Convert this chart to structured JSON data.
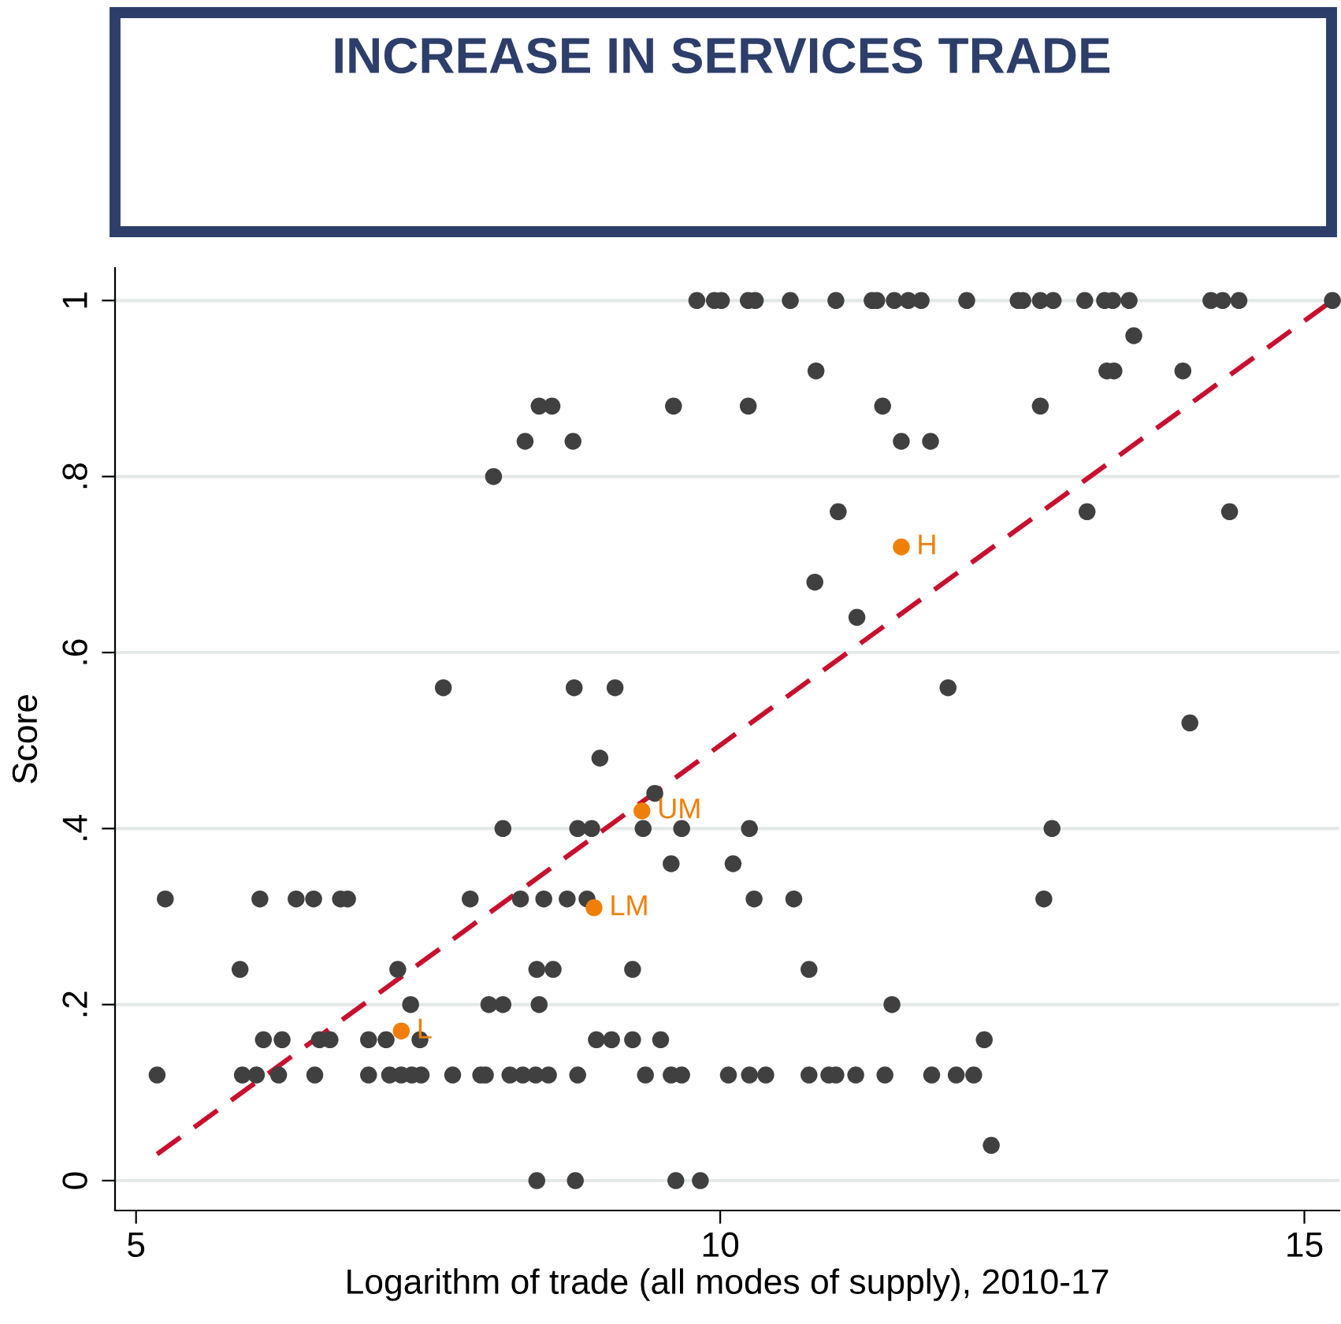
{
  "chart_data": {
    "type": "scatter",
    "title": "INCREASE IN SERVICES TRADE",
    "xlabel": "Logarithm of trade (all modes of supply), 2010-17",
    "ylabel": "Score",
    "xlim": [
      4.82,
      15.3
    ],
    "ylim": [
      -0.034,
      1.037
    ],
    "xticks": [
      5,
      10,
      15
    ],
    "yticks": [
      0,
      {
        "value": 0.2,
        "label": ".2"
      },
      {
        "value": 0.4,
        "label": ".4"
      },
      {
        "value": 0.6,
        "label": ".6"
      },
      {
        "value": 0.8,
        "label": ".8"
      },
      1
    ],
    "grid": "y",
    "marker": "circle",
    "legend": false,
    "series": [
      {
        "color": "#404040",
        "x": [
          9.8,
          9.95,
          10.01,
          10.24,
          10.3,
          10.6,
          10.99,
          11.3,
          11.34,
          11.49,
          11.61,
          11.72,
          12.11,
          12.55,
          12.59,
          12.74,
          12.85,
          13.12,
          13.29,
          13.36,
          13.5,
          14.2,
          14.3,
          14.44,
          15.24,
          13.54,
          10.82,
          13.31,
          13.37,
          13.96,
          8.45,
          8.56,
          9.6,
          10.24,
          11.39,
          12.74,
          8.33,
          8.74,
          11.55,
          11.8,
          8.06,
          11.01,
          13.14,
          14.36,
          10.81,
          11.17,
          7.63,
          8.75,
          9.1,
          11.95,
          14.02,
          8.97,
          9.44,
          8.14,
          8.78,
          8.9,
          9.34,
          9.67,
          10.25,
          12.84,
          9.58,
          10.11,
          5.25,
          6.06,
          6.37,
          6.52,
          6.75,
          6.81,
          7.86,
          8.29,
          8.49,
          8.69,
          8.86,
          10.29,
          10.63,
          12.77,
          5.89,
          7.24,
          8.43,
          8.57,
          9.25,
          10.76,
          7.35,
          8.02,
          8.14,
          8.45,
          11.47,
          6.09,
          6.25,
          6.57,
          6.66,
          6.99,
          7.14,
          7.43,
          8.94,
          9.07,
          9.25,
          9.49,
          12.26,
          5.18,
          5.91,
          6.03,
          6.22,
          6.53,
          6.99,
          7.17,
          7.27,
          7.36,
          7.44,
          7.71,
          7.95,
          7.99,
          8.2,
          8.31,
          8.42,
          8.53,
          8.78,
          9.36,
          9.58,
          9.67,
          10.07,
          10.25,
          10.39,
          10.76,
          10.93,
          10.99,
          11.16,
          11.41,
          11.81,
          12.02,
          12.17,
          12.32,
          8.43,
          8.76,
          9.62,
          9.83
        ],
        "values": [
          1,
          1,
          1,
          1,
          1,
          1,
          1,
          1,
          1,
          1,
          1,
          1,
          1,
          1,
          1,
          1,
          1,
          1,
          1,
          1,
          1,
          1,
          1,
          1,
          1,
          0.96,
          0.92,
          0.92,
          0.92,
          0.92,
          0.88,
          0.88,
          0.88,
          0.88,
          0.88,
          0.88,
          0.84,
          0.84,
          0.84,
          0.84,
          0.8,
          0.76,
          0.76,
          0.76,
          0.68,
          0.64,
          0.56,
          0.56,
          0.56,
          0.56,
          0.52,
          0.48,
          0.44,
          0.4,
          0.4,
          0.4,
          0.4,
          0.4,
          0.4,
          0.4,
          0.36,
          0.36,
          0.32,
          0.32,
          0.32,
          0.32,
          0.32,
          0.32,
          0.32,
          0.32,
          0.32,
          0.32,
          0.32,
          0.32,
          0.32,
          0.32,
          0.24,
          0.24,
          0.24,
          0.24,
          0.24,
          0.24,
          0.2,
          0.2,
          0.2,
          0.2,
          0.2,
          0.16,
          0.16,
          0.16,
          0.16,
          0.16,
          0.16,
          0.16,
          0.16,
          0.16,
          0.16,
          0.16,
          0.16,
          0.12,
          0.12,
          0.12,
          0.12,
          0.12,
          0.12,
          0.12,
          0.12,
          0.12,
          0.12,
          0.12,
          0.12,
          0.12,
          0.12,
          0.12,
          0.12,
          0.12,
          0.12,
          0.12,
          0.12,
          0.12,
          0.12,
          0.12,
          0.12,
          0.12,
          0.12,
          0.12,
          0.12,
          0.12,
          0.12,
          0.12,
          0.12,
          0.04,
          0,
          0,
          0,
          0
        ]
      },
      {
        "type": "line",
        "color": "#c8102e",
        "line_style": "dashed",
        "marker": "none",
        "x": [
          5.18,
          15.24
        ],
        "values": [
          0.03,
          1.0
        ]
      },
      {
        "color": "#f07f09",
        "x": [
          7.27,
          8.92,
          9.33,
          11.55
        ],
        "values": [
          0.17,
          0.31,
          0.42,
          0.72
        ]
      }
    ],
    "annotations": [
      {
        "text": "L",
        "x": 7.27,
        "y": 0.17
      },
      {
        "text": "LM",
        "x": 8.92,
        "y": 0.31
      },
      {
        "text": "UM",
        "x": 9.33,
        "y": 0.42
      },
      {
        "text": "H",
        "x": 11.55,
        "y": 0.72
      }
    ]
  }
}
